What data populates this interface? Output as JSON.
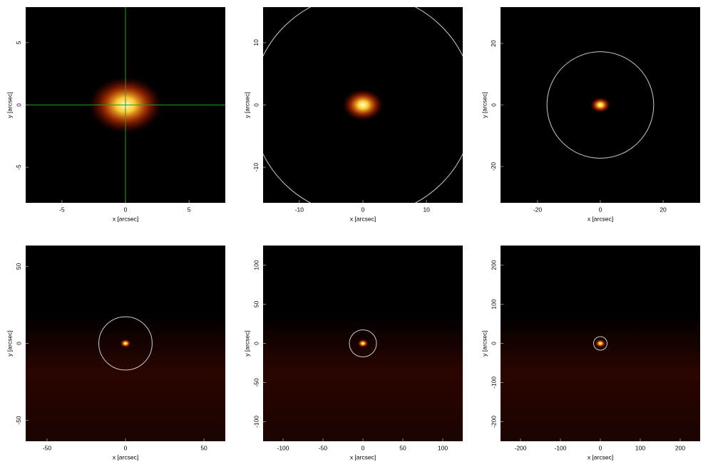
{
  "chart_data": [
    {
      "type": "image",
      "xlabel": "x [arcsec]",
      "ylabel": "y [arcsec]",
      "xlim": [
        -7.85,
        7.85
      ],
      "ylim": [
        -7.85,
        7.85
      ],
      "xticks": [
        -5,
        0,
        5
      ],
      "yticks": [
        -5,
        0,
        5
      ],
      "crosshair": [
        0,
        0
      ],
      "crosshair_color": "#1f9e1f"
    },
    {
      "type": "image",
      "xlabel": "x [arcsec]",
      "ylabel": "y [arcsec]",
      "xlim": [
        -15.7,
        15.7
      ],
      "ylim": [
        -15.7,
        15.7
      ],
      "xticks": [
        -10,
        0,
        10
      ],
      "yticks": [
        -10,
        0,
        10
      ],
      "circle_radius": 17.5,
      "circle_color": "#cccccc"
    },
    {
      "type": "image",
      "xlabel": "x [arcsec]",
      "ylabel": "y [arcsec]",
      "xlim": [
        -31.8,
        31.8
      ],
      "ylim": [
        -31.8,
        31.8
      ],
      "xticks": [
        -20,
        0,
        20
      ],
      "yticks": [
        -20,
        0,
        20
      ],
      "circle_radius": 17,
      "circle_color": "#cccccc"
    },
    {
      "type": "image",
      "xlabel": "x [arcsec]",
      "ylabel": "y [arcsec]",
      "xlim": [
        -63.6,
        63.6
      ],
      "ylim": [
        -63.6,
        63.6
      ],
      "xticks": [
        -50,
        0,
        50
      ],
      "yticks": [
        -50,
        0,
        50
      ],
      "circle_radius": 17,
      "circle_color": "#cccccc"
    },
    {
      "type": "image",
      "xlabel": "x [arcsec]",
      "ylabel": "y [arcsec]",
      "xlim": [
        -125,
        125
      ],
      "ylim": [
        -125,
        125
      ],
      "xticks": [
        -100,
        -50,
        0,
        50,
        100
      ],
      "yticks": [
        -100,
        -50,
        0,
        50,
        100
      ],
      "circle_radius": 17,
      "circle_color": "#cccccc"
    },
    {
      "type": "image",
      "xlabel": "x [arcsec]",
      "ylabel": "y [arcsec]",
      "xlim": [
        -250,
        250
      ],
      "ylim": [
        -250,
        250
      ],
      "xticks": [
        -200,
        -100,
        0,
        100,
        200
      ],
      "yticks": [
        -200,
        -100,
        0,
        100,
        200
      ],
      "circle_radius": 17,
      "circle_color": "#cccccc"
    }
  ]
}
